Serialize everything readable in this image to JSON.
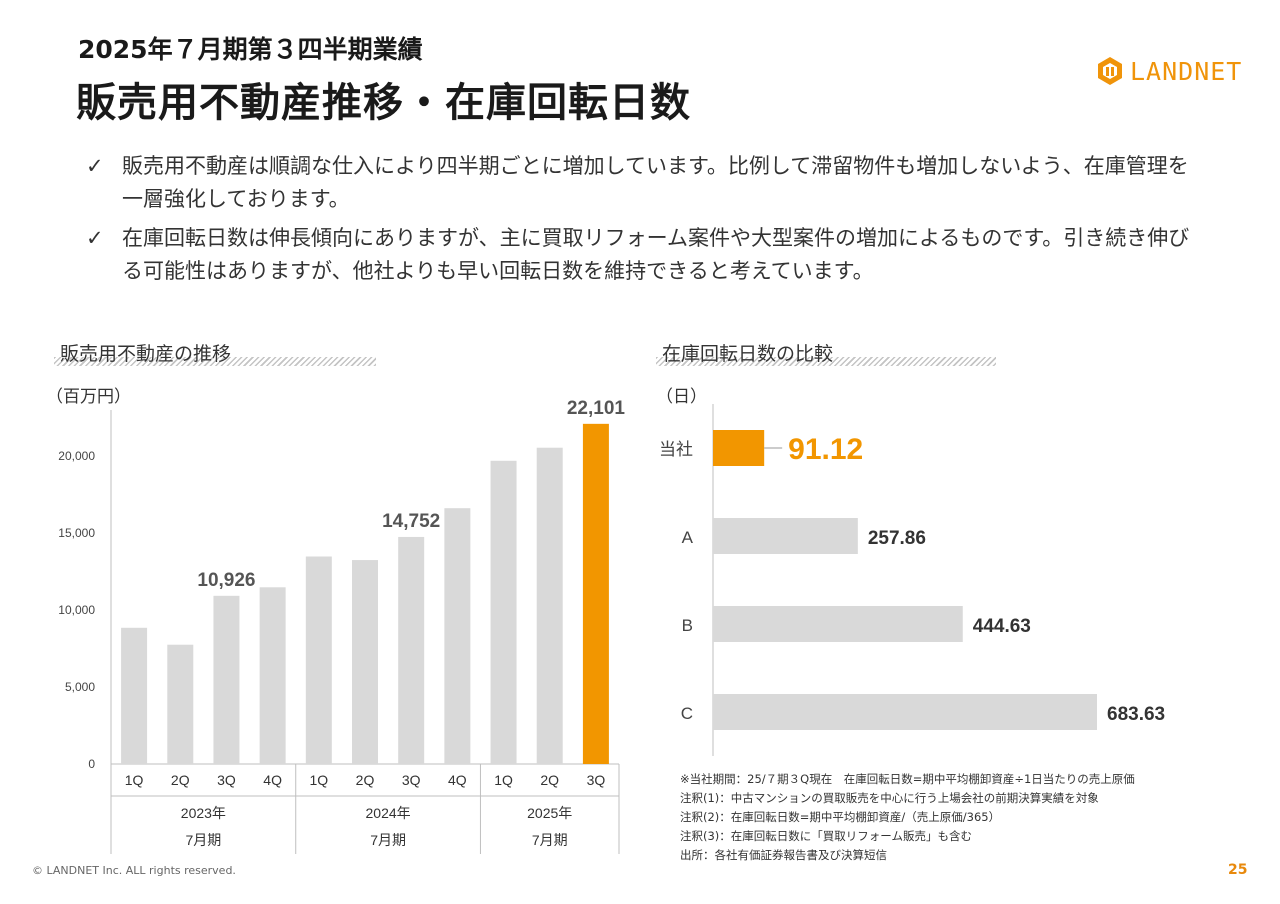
{
  "header": {
    "subtitle": "2025年７月期第３四半期業績",
    "title": "販売用不動産推移・在庫回転日数"
  },
  "logo": {
    "text": "LANDNET",
    "icon": "landnet-logo-icon"
  },
  "bullets": [
    {
      "mark": "✓",
      "text": "販売用不動産は順調な仕入により四半期ごとに増加しています。比例して滞留物件も増加しないよう、在庫管理を一層強化しております。"
    },
    {
      "mark": "✓",
      "text": "在庫回転日数は伸長傾向にありますが、主に買取リフォーム案件や大型案件の増加によるものです。引き続き伸びる可能性はありますが、他社よりも早い回転日数を維持できると考えています。"
    }
  ],
  "colors": {
    "accent": "#f29600",
    "bar_gray": "#d9d9d9",
    "axis": "#bfbfbf"
  },
  "chart_data": [
    {
      "type": "bar",
      "title": "販売用不動産の推移",
      "ylabel": "（百万円）",
      "ylim": [
        0,
        23000
      ],
      "yticks": [
        0,
        5000,
        10000,
        15000,
        20000
      ],
      "ytick_labels": [
        "0",
        "5,000",
        "10,000",
        "15,000",
        "20,000"
      ],
      "categories": [
        "1Q",
        "2Q",
        "3Q",
        "4Q",
        "1Q",
        "2Q",
        "3Q",
        "4Q",
        "1Q",
        "2Q",
        "3Q"
      ],
      "values": [
        8850,
        7750,
        10926,
        11480,
        13480,
        13250,
        14752,
        16620,
        19700,
        20550,
        22101
      ],
      "highlight_index": 10,
      "data_labels": [
        {
          "index": 2,
          "text": "10,926"
        },
        {
          "index": 6,
          "text": "14,752"
        },
        {
          "index": 10,
          "text": "22,101"
        }
      ],
      "groups": [
        {
          "year": "2023年",
          "period": "7月期",
          "start": 0,
          "end": 3
        },
        {
          "year": "2024年",
          "period": "7月期",
          "start": 4,
          "end": 7
        },
        {
          "year": "2025年",
          "period": "7月期",
          "start": 8,
          "end": 10
        }
      ]
    },
    {
      "type": "bar",
      "orientation": "horizontal",
      "title": "在庫回転日数の比較",
      "xlabel": "（日）",
      "xlim": [
        0,
        700
      ],
      "categories": [
        "当社",
        "A",
        "B",
        "C"
      ],
      "values": [
        91.12,
        257.86,
        444.63,
        683.63
      ],
      "labels": [
        "91.12",
        "257.86",
        "444.63",
        "683.63"
      ],
      "highlight_index": 0
    }
  ],
  "notes": [
    "※当社期間：25/７期３Q現在　在庫回転日数=期中平均棚卸資産÷1日当たりの売上原価",
    "注釈(1)：中古マンションの買取販売を中心に行う上場会社の前期決算実績を対象",
    "注釈(2)：在庫回転日数=期中平均棚卸資産/（売上原価/365）",
    "注釈(3)：在庫回転日数に「買取リフォーム販売」も含む",
    "出所：各社有価証券報告書及び決算短信"
  ],
  "footer": {
    "copyright": "© LANDNET Inc. ALL rights reserved.",
    "page": "25"
  }
}
